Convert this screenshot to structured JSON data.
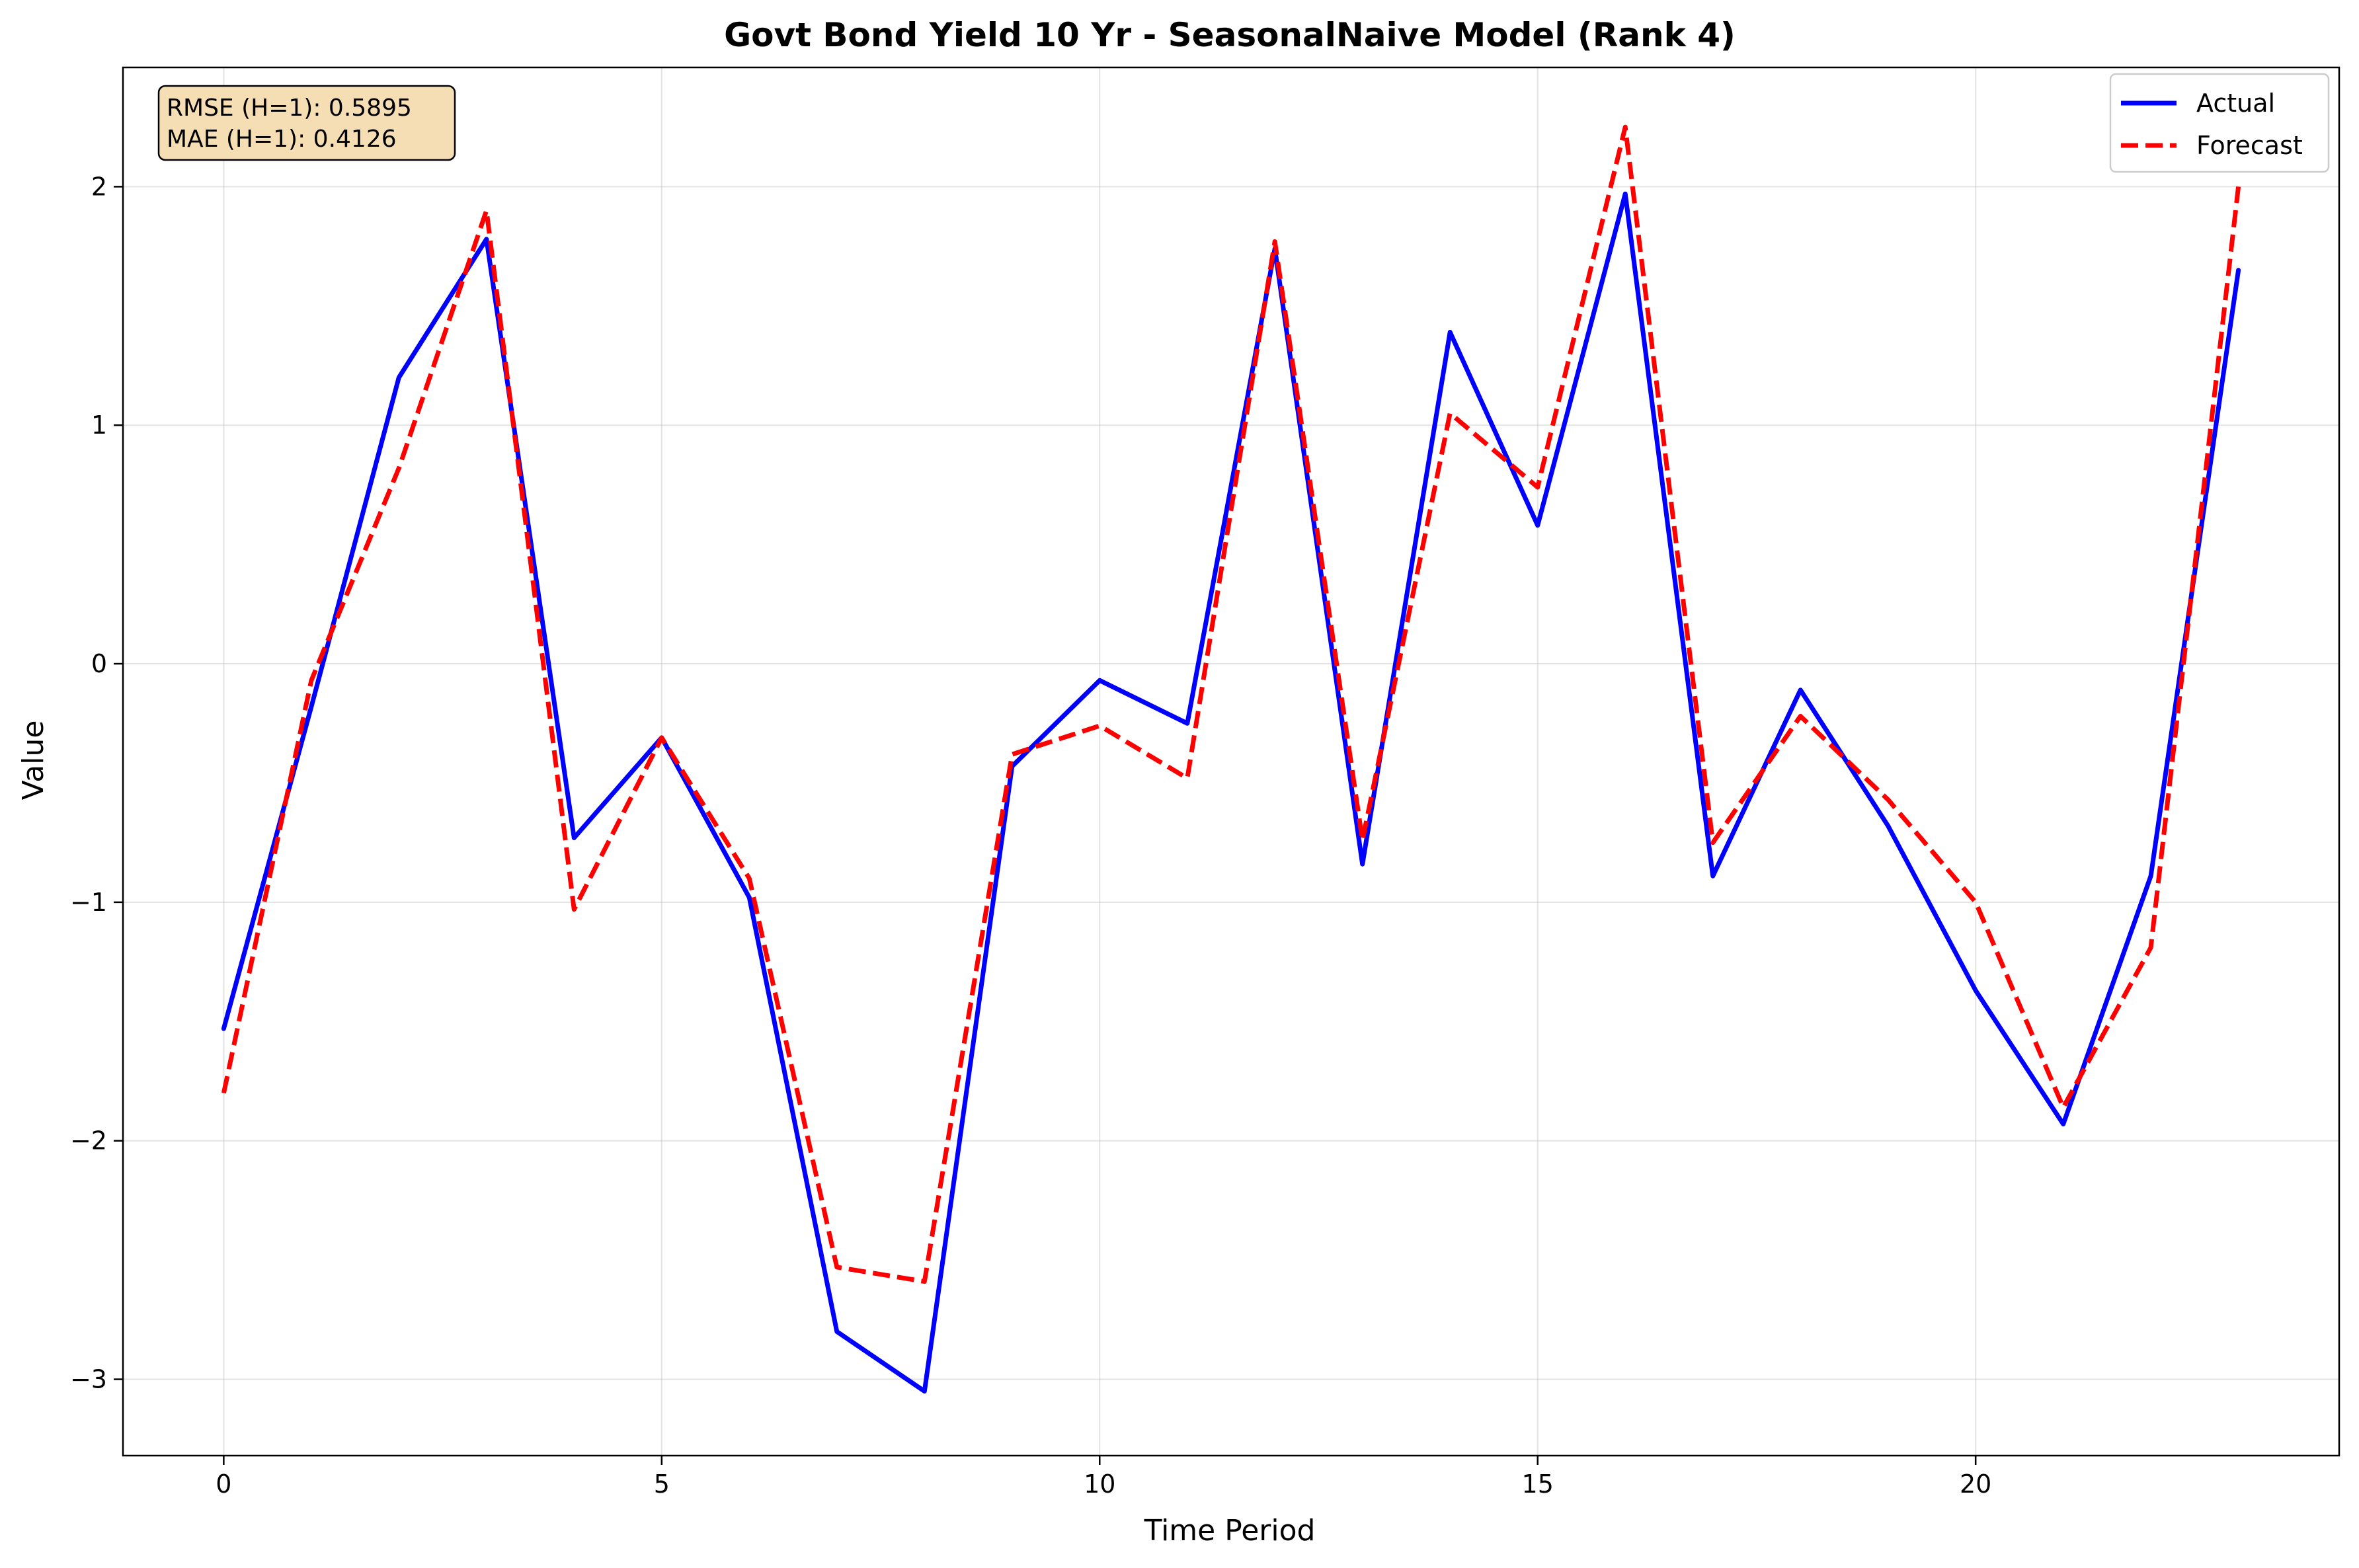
{
  "chart_data": {
    "type": "line",
    "title": "Govt Bond Yield 10 Yr - SeasonalNaive Model (Rank 4)",
    "xlabel": "Time Period",
    "ylabel": "Value",
    "xlim": [
      -1.15,
      24.15
    ],
    "ylim": [
      -3.32,
      2.5
    ],
    "xticks": [
      0,
      5,
      10,
      15,
      20
    ],
    "xtick_labels": [
      "0",
      "5",
      "10",
      "15",
      "20"
    ],
    "yticks": [
      -3,
      -2,
      -1,
      0,
      1,
      2
    ],
    "ytick_labels": [
      "−3",
      "−2",
      "−1",
      "0",
      "1",
      "2"
    ],
    "grid": true,
    "legend_position": "top-right",
    "x": [
      0,
      1,
      2,
      3,
      4,
      5,
      6,
      7,
      8,
      9,
      10,
      11,
      12,
      13,
      14,
      15,
      16,
      17,
      18,
      19,
      20,
      21,
      22,
      23
    ],
    "series": [
      {
        "name": "Actual",
        "color": "#0000ff",
        "style": "solid",
        "values": [
          -1.53,
          -0.18,
          1.2,
          1.78,
          -0.73,
          -0.31,
          -0.98,
          -2.8,
          -3.05,
          -0.43,
          -0.07,
          -0.25,
          1.74,
          -0.84,
          1.39,
          0.58,
          1.97,
          -0.89,
          -0.11,
          -0.68,
          -1.37,
          -1.93,
          -0.89,
          1.65
        ]
      },
      {
        "name": "Forecast",
        "color": "#ff0000",
        "style": "dashed",
        "values": [
          -1.8,
          -0.07,
          0.82,
          1.9,
          -1.03,
          -0.31,
          -0.9,
          -2.53,
          -2.59,
          -0.38,
          -0.26,
          -0.48,
          1.77,
          -0.74,
          1.05,
          0.74,
          2.25,
          -0.75,
          -0.22,
          -0.57,
          -1.0,
          -1.86,
          -1.19,
          2.0
        ]
      }
    ],
    "annotation": {
      "lines": [
        "RMSE (H=1): 0.5895",
        "MAE (H=1): 0.4126"
      ],
      "position": "top-left",
      "background": "#f5deb3"
    }
  }
}
